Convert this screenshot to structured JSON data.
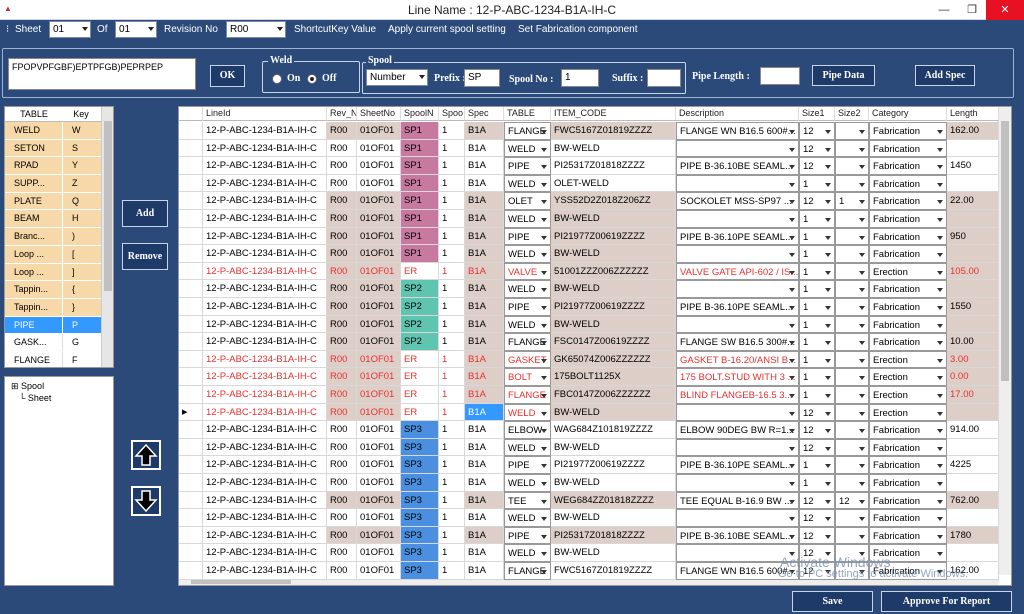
{
  "window": {
    "title": "Line Name : 12-P-ABC-1234-B1A-IH-C",
    "min": "—",
    "max": "❐",
    "close": "✕"
  },
  "toolbar": {
    "sheet_label": "Sheet",
    "sheet_value": "01",
    "of_label": "Of",
    "of_value": "01",
    "revision_label": "Revision No",
    "revision_value": "R00",
    "shortcut_label": "ShortcutKey Value",
    "apply_label": "Apply current spool setting",
    "set_fab_label": "Set Fabrication component"
  },
  "top": {
    "shortcut_text": "FPOPVPFGBF)EPTPFGB)PEPRPEP",
    "ok": "OK",
    "weld_label": "Weld",
    "weld_on": "On",
    "weld_off": "Off",
    "spool_label": "Spool",
    "spool_type": "Number",
    "prefix_label": "Prefix :",
    "prefix_value": "SP",
    "spool_no_label": "Spool No :",
    "spool_no_value": "1",
    "suffix_label": "Suffix :",
    "suffix_value": "",
    "pipe_length_label": "Pipe Length :",
    "pipe_length_value": "",
    "pipe_data": "Pipe Data",
    "add_spec": "Add Spec"
  },
  "keys": {
    "headers": [
      "TABLE",
      "Key"
    ],
    "rows": [
      [
        "WELD",
        "W"
      ],
      [
        "SETON",
        "S"
      ],
      [
        "RPAD",
        "Y"
      ],
      [
        "SUPP...",
        "Z"
      ],
      [
        "PLATE",
        "Q"
      ],
      [
        "BEAM",
        "H"
      ],
      [
        "Branc...",
        ")"
      ],
      [
        "Loop ...",
        "["
      ],
      [
        "Loop ...",
        "]"
      ],
      [
        "Tappin...",
        "{"
      ],
      [
        "Tappin...",
        "}"
      ],
      [
        "PIPE",
        "P"
      ],
      [
        "GASK...",
        "G"
      ],
      [
        "FLANGE",
        "F"
      ]
    ]
  },
  "side": {
    "add": "Add",
    "remove": "Remove"
  },
  "tree": {
    "root": "Spool",
    "child": "Sheet"
  },
  "grid": {
    "headers": [
      "LineId",
      "Rev_N",
      "SheetNo",
      "SpoolN",
      "Spoo",
      "Spec",
      "TABLE",
      "ITEM_CODE",
      "Description",
      "Size1",
      "Size2",
      "Category",
      "Length"
    ],
    "rows": [
      [
        "12-P-ABC-1234-B1A-IH-C",
        "R00",
        "01OF01",
        "SP1",
        "1",
        "B1A",
        "FLANGE",
        "FWC5167Z01819ZZZZ",
        "FLANGE WN B16.5 600#...",
        "12",
        "",
        "Fabrication",
        "162.00"
      ],
      [
        "12-P-ABC-1234-B1A-IH-C",
        "R00",
        "01OF01",
        "SP1",
        "1",
        "B1A",
        "WELD",
        "BW-WELD",
        "",
        "12",
        "",
        "Fabrication",
        ""
      ],
      [
        "12-P-ABC-1234-B1A-IH-C",
        "R00",
        "01OF01",
        "SP1",
        "1",
        "B1A",
        "PIPE",
        "PI25317Z01818ZZZZ",
        "PIPE B-36.10BE SEAML...",
        "12",
        "",
        "Fabrication",
        "1450"
      ],
      [
        "12-P-ABC-1234-B1A-IH-C",
        "R00",
        "01OF01",
        "SP1",
        "1",
        "B1A",
        "WELD",
        "OLET-WELD",
        "",
        "1",
        "",
        "Fabrication",
        ""
      ],
      [
        "12-P-ABC-1234-B1A-IH-C",
        "R00",
        "01OF01",
        "SP1",
        "1",
        "B1A",
        "OLET",
        "YSS52D2Z018Z206ZZ",
        "SOCKOLET MSS-SP97 ...",
        "12",
        "1",
        "Fabrication",
        "22.00"
      ],
      [
        "12-P-ABC-1234-B1A-IH-C",
        "R00",
        "01OF01",
        "SP1",
        "1",
        "B1A",
        "WELD",
        "BW-WELD",
        "",
        "1",
        "",
        "Fabrication",
        ""
      ],
      [
        "12-P-ABC-1234-B1A-IH-C",
        "R00",
        "01OF01",
        "SP1",
        "1",
        "B1A",
        "PIPE",
        "PI21977Z00619ZZZZ",
        "PIPE B-36.10PE SEAML...",
        "1",
        "",
        "Fabrication",
        "950"
      ],
      [
        "12-P-ABC-1234-B1A-IH-C",
        "R00",
        "01OF01",
        "SP1",
        "1",
        "B1A",
        "WELD",
        "BW-WELD",
        "",
        "1",
        "",
        "Fabrication",
        ""
      ],
      [
        "12-P-ABC-1234-B1A-IH-C",
        "R00",
        "01OF01",
        "ER",
        "1",
        "B1A",
        "VALVE",
        "51001ZZZ006ZZZZZZ",
        "VALVE GATE API-602 / IS...",
        "1",
        "",
        "Erection",
        "105.00"
      ],
      [
        "12-P-ABC-1234-B1A-IH-C",
        "R00",
        "01OF01",
        "SP2",
        "1",
        "B1A",
        "WELD",
        "BW-WELD",
        "",
        "1",
        "",
        "Fabrication",
        ""
      ],
      [
        "12-P-ABC-1234-B1A-IH-C",
        "R00",
        "01OF01",
        "SP2",
        "1",
        "B1A",
        "PIPE",
        "PI21977Z00619ZZZZ",
        "PIPE B-36.10PE SEAML...",
        "1",
        "",
        "Fabrication",
        "1550"
      ],
      [
        "12-P-ABC-1234-B1A-IH-C",
        "R00",
        "01OF01",
        "SP2",
        "1",
        "B1A",
        "WELD",
        "BW-WELD",
        "",
        "1",
        "",
        "Fabrication",
        ""
      ],
      [
        "12-P-ABC-1234-B1A-IH-C",
        "R00",
        "01OF01",
        "SP2",
        "1",
        "B1A",
        "FLANGE",
        "FSC0147Z00619ZZZZ",
        "FLANGE SW B16.5 300#...",
        "1",
        "",
        "Fabrication",
        "10.00"
      ],
      [
        "12-P-ABC-1234-B1A-IH-C",
        "R00",
        "01OF01",
        "ER",
        "1",
        "B1A",
        "GASKET",
        "GK65074Z006ZZZZZZ",
        "GASKET B-16.20/ANSI B...",
        "1",
        "",
        "Erection",
        "3.00"
      ],
      [
        "12-P-ABC-1234-B1A-IH-C",
        "R00",
        "01OF01",
        "ER",
        "1",
        "B1A",
        "BOLT",
        "175BOLT1125X",
        "175 BOLT.STUD WITH 3 ...",
        "1",
        "",
        "Erection",
        "0.00"
      ],
      [
        "12-P-ABC-1234-B1A-IH-C",
        "R00",
        "01OF01",
        "ER",
        "1",
        "B1A",
        "FLANGE",
        "FBC0147Z006ZZZZZZ",
        "BLIND FLANGEB-16.5 3...",
        "1",
        "",
        "Erection",
        "17.00"
      ],
      [
        "12-P-ABC-1234-B1A-IH-C",
        "R00",
        "01OF01",
        "ER",
        "1",
        "B1A",
        "WELD",
        "BW-WELD",
        "",
        "12",
        "",
        "Erection",
        ""
      ],
      [
        "12-P-ABC-1234-B1A-IH-C",
        "R00",
        "01OF01",
        "SP3",
        "1",
        "B1A",
        "ELBOW",
        "WAG684Z101819ZZZZ",
        "ELBOW 90DEG BW R=1...",
        "12",
        "",
        "Fabrication",
        "914.00"
      ],
      [
        "12-P-ABC-1234-B1A-IH-C",
        "R00",
        "01OF01",
        "SP3",
        "1",
        "B1A",
        "WELD",
        "BW-WELD",
        "",
        "12",
        "",
        "Fabrication",
        ""
      ],
      [
        "12-P-ABC-1234-B1A-IH-C",
        "R00",
        "01OF01",
        "SP3",
        "1",
        "B1A",
        "PIPE",
        "PI21977Z00619ZZZZ",
        "PIPE B-36.10PE SEAML...",
        "1",
        "",
        "Fabrication",
        "4225"
      ],
      [
        "12-P-ABC-1234-B1A-IH-C",
        "R00",
        "01OF01",
        "SP3",
        "1",
        "B1A",
        "WELD",
        "BW-WELD",
        "",
        "1",
        "",
        "Fabrication",
        ""
      ],
      [
        "12-P-ABC-1234-B1A-IH-C",
        "R00",
        "01OF01",
        "SP3",
        "1",
        "B1A",
        "TEE",
        "WEG684ZZ01818ZZZZ",
        "TEE EQUAL B-16.9 BW ...",
        "12",
        "12",
        "Fabrication",
        "762.00"
      ],
      [
        "12-P-ABC-1234-B1A-IH-C",
        "R00",
        "01OF01",
        "SP3",
        "1",
        "B1A",
        "WELD",
        "BW-WELD",
        "",
        "12",
        "",
        "Fabrication",
        ""
      ],
      [
        "12-P-ABC-1234-B1A-IH-C",
        "R00",
        "01OF01",
        "SP3",
        "1",
        "B1A",
        "PIPE",
        "PI25317Z01818ZZZZ",
        "PIPE B-36.10BE SEAML...",
        "12",
        "",
        "Fabrication",
        "1780"
      ],
      [
        "12-P-ABC-1234-B1A-IH-C",
        "R00",
        "01OF01",
        "SP3",
        "1",
        "B1A",
        "WELD",
        "BW-WELD",
        "",
        "12",
        "",
        "Fabrication",
        ""
      ],
      [
        "12-P-ABC-1234-B1A-IH-C",
        "R00",
        "01OF01",
        "SP3",
        "1",
        "B1A",
        "FLANGE",
        "FWC5167Z01819ZZZZ",
        "FLANGE WN B16.5 600#...",
        "12",
        "",
        "Fabrication",
        "162.00"
      ]
    ]
  },
  "colors": {
    "bg": "#2b4a7a",
    "sp1": "#c879a0",
    "sp2": "#5fc4b0",
    "sp3": "#4a8fe0",
    "erection": "#e83030",
    "tan": "#ddcfc8",
    "selected": "#3399ff"
  },
  "footer": {
    "save": "Save",
    "approve": "Approve For Report"
  },
  "watermark": {
    "line1": "Activate Windows",
    "line2": "Go to PC settings to activate Windows."
  }
}
